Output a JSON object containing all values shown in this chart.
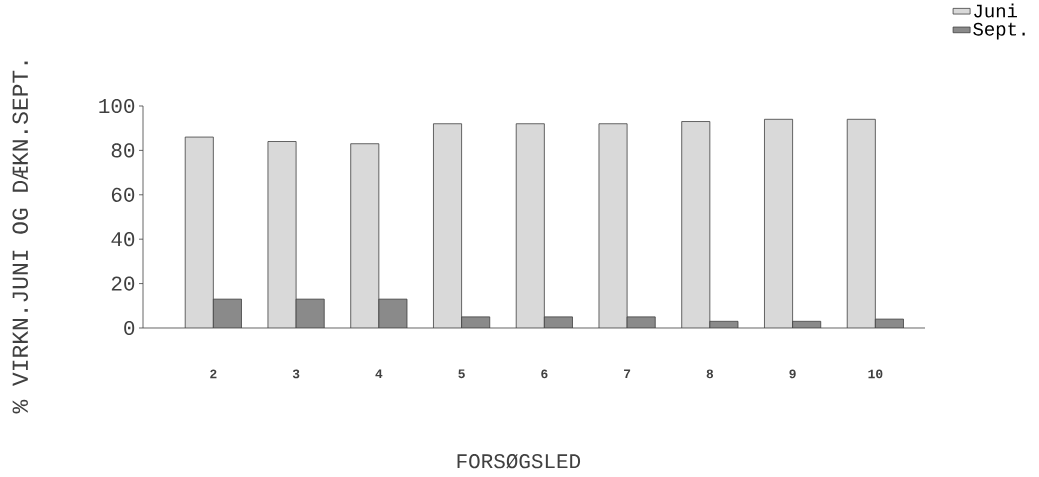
{
  "chart_data": {
    "type": "bar",
    "xlabel": "FORSØGSLED",
    "ylabel": "% VIRKN.JUNI OG DÆKN.SEPT.",
    "categories": [
      "2",
      "3",
      "4",
      "5",
      "6",
      "7",
      "8",
      "9",
      "10"
    ],
    "series": [
      {
        "name": "Juni",
        "color": "#d9d9d9",
        "values": [
          86,
          84,
          83,
          92,
          92,
          92,
          93,
          94,
          94
        ]
      },
      {
        "name": "Sept.",
        "color": "#8a8a8a",
        "values": [
          13,
          13,
          13,
          5,
          5,
          5,
          3,
          3,
          4
        ]
      }
    ],
    "ylim": [
      0,
      100
    ],
    "yticks": [
      0,
      20,
      40,
      60,
      80,
      100
    ],
    "grid": false,
    "legend": "top right"
  }
}
